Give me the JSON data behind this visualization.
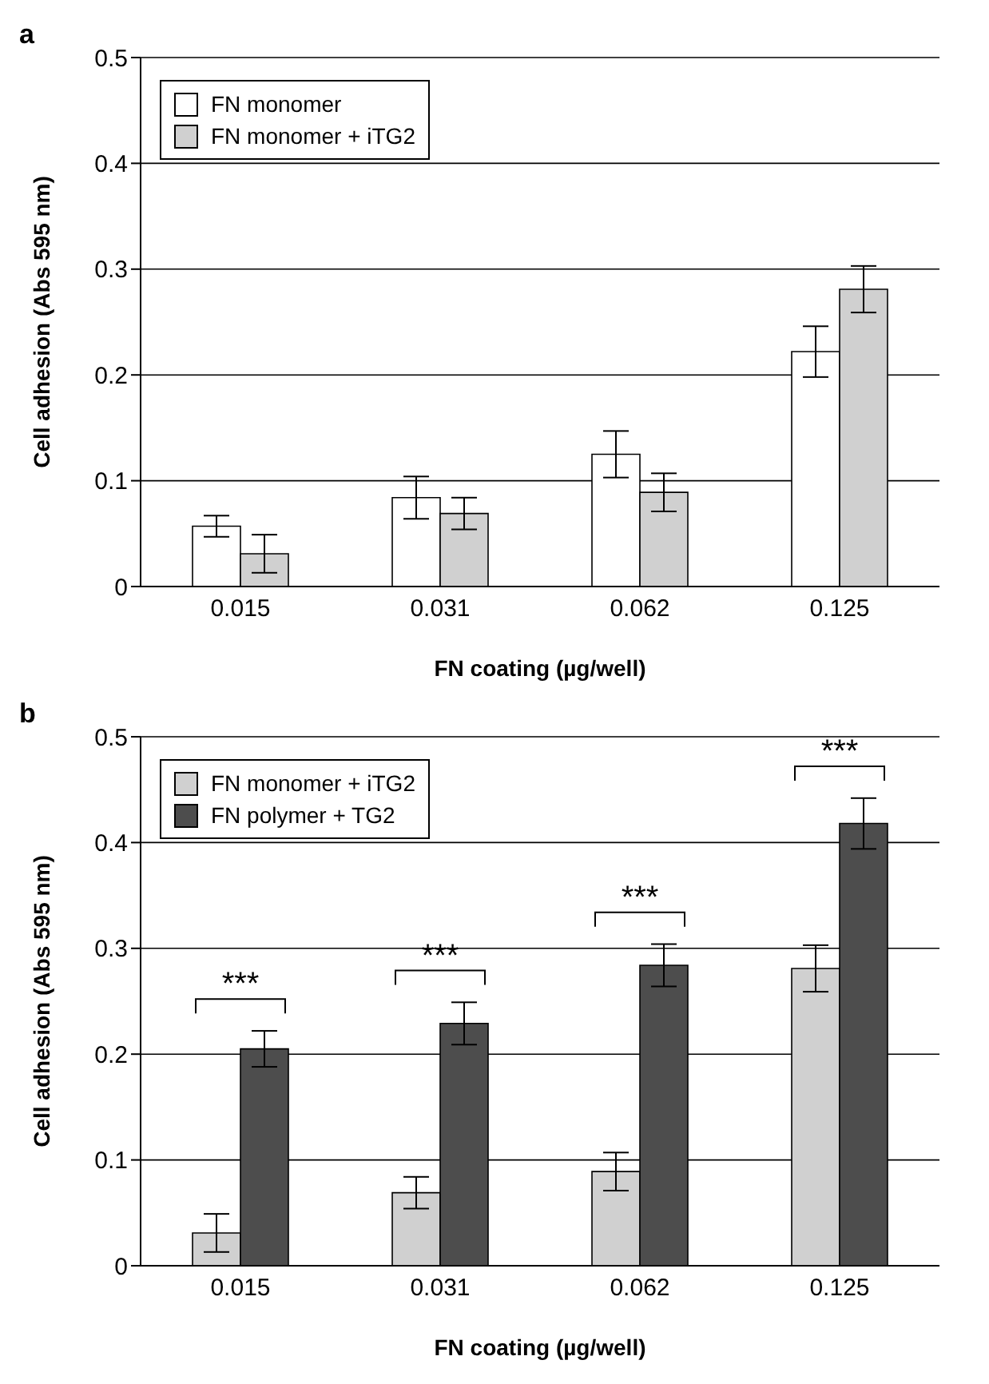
{
  "chart_data": [
    {
      "type": "bar",
      "title": "a",
      "xlabel": "FN coating (µg/well)",
      "ylabel": "Cell adhesion (Abs 595 nm)",
      "categories": [
        "0.015",
        "0.031",
        "0.062",
        "0.125"
      ],
      "series": [
        {
          "name": "FN monomer",
          "color": "#ffffff",
          "values": [
            0.057,
            0.084,
            0.125,
            0.222
          ],
          "errors": [
            0.01,
            0.02,
            0.022,
            0.024
          ]
        },
        {
          "name": "FN monomer + iTG2",
          "color": "#d0d0d0",
          "values": [
            0.031,
            0.069,
            0.089,
            0.281
          ],
          "errors": [
            0.018,
            0.015,
            0.018,
            0.022
          ]
        }
      ],
      "ylim": [
        0,
        0.5
      ],
      "yticks": [
        0,
        0.1,
        0.2,
        0.3,
        0.4,
        0.5
      ],
      "grid": "y",
      "legend": "top left"
    },
    {
      "type": "bar",
      "title": "b",
      "xlabel": "FN coating (µg/well)",
      "ylabel": "Cell adhesion (Abs 595 nm)",
      "categories": [
        "0.015",
        "0.031",
        "0.062",
        "0.125"
      ],
      "series": [
        {
          "name": "FN monomer + iTG2",
          "color": "#d0d0d0",
          "values": [
            0.031,
            0.069,
            0.089,
            0.281
          ],
          "errors": [
            0.018,
            0.015,
            0.018,
            0.022
          ]
        },
        {
          "name": "FN polymer + TG2",
          "color": "#4d4d4d",
          "values": [
            0.205,
            0.229,
            0.284,
            0.418
          ],
          "errors": [
            0.017,
            0.02,
            0.02,
            0.024
          ]
        }
      ],
      "ylim": [
        0,
        0.5
      ],
      "yticks": [
        0,
        0.1,
        0.2,
        0.3,
        0.4,
        0.5
      ],
      "grid": "y",
      "legend": "top left",
      "annotations": [
        "***",
        "***",
        "***",
        "***"
      ]
    }
  ]
}
